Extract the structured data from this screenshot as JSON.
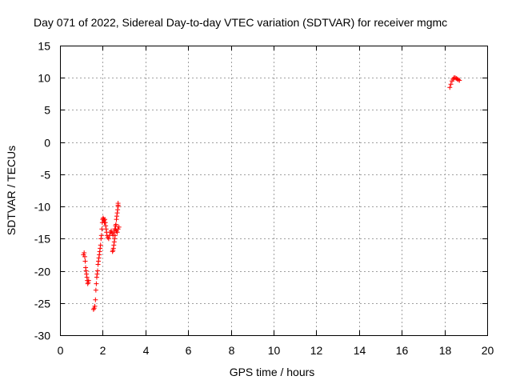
{
  "chart_data": {
    "type": "scatter",
    "title": "Day 071 of 2022, Sidereal Day-to-day VTEC variation (SDTVAR) for receiver mgmc",
    "xlabel": "GPS time / hours",
    "ylabel": "SDTVAR / TECUs",
    "xlim": [
      0,
      20
    ],
    "ylim": [
      -30,
      15
    ],
    "xticks": [
      0,
      2,
      4,
      6,
      8,
      10,
      12,
      14,
      16,
      18,
      20
    ],
    "yticks": [
      -30,
      -25,
      -20,
      -15,
      -10,
      -5,
      0,
      5,
      10,
      15
    ],
    "grid": true,
    "marker": "+",
    "series": [
      {
        "name": "SDTVAR",
        "color": "#ff0000",
        "x": [
          1.1,
          1.13,
          1.16,
          1.18,
          1.2,
          1.22,
          1.24,
          1.26,
          1.28,
          1.3,
          1.32,
          1.34,
          1.57,
          1.6,
          1.63,
          1.66,
          1.68,
          1.7,
          1.72,
          1.74,
          1.76,
          1.78,
          1.8,
          1.82,
          1.84,
          1.86,
          1.88,
          1.9,
          1.92,
          1.94,
          1.96,
          1.98,
          2.0,
          2.02,
          2.04,
          2.06,
          2.08,
          2.1,
          2.12,
          2.14,
          2.16,
          2.18,
          2.2,
          2.24,
          2.28,
          2.32,
          2.36,
          2.4,
          2.44,
          2.48,
          2.52,
          2.56,
          2.6,
          2.64,
          2.68,
          2.72,
          2.76,
          2.46,
          2.48,
          2.5,
          2.52,
          2.54,
          2.56,
          2.58,
          2.6,
          2.62,
          2.64,
          2.66,
          2.68,
          2.7,
          2.72,
          2.72,
          2.72,
          18.25,
          18.3,
          18.35,
          18.4,
          18.45,
          18.5,
          18.55,
          18.6,
          18.65,
          18.7
        ],
        "y": [
          -17.5,
          -17.2,
          -17.8,
          -18.5,
          -19.5,
          -20.0,
          -20.5,
          -21.0,
          -21.5,
          -22.0,
          -21.8,
          -21.5,
          -26.0,
          -25.8,
          -25.5,
          -24.5,
          -23.0,
          -22.0,
          -21.0,
          -20.5,
          -20.0,
          -19.0,
          -18.5,
          -18.0,
          -17.5,
          -17.0,
          -16.5,
          -16.0,
          -15.0,
          -14.5,
          -13.5,
          -12.5,
          -12.0,
          -11.8,
          -12.0,
          -12.2,
          -12.5,
          -12.0,
          -12.5,
          -13.0,
          -13.5,
          -14.0,
          -14.5,
          -14.8,
          -15.0,
          -14.5,
          -14.0,
          -13.8,
          -14.2,
          -14.5,
          -14.0,
          -13.5,
          -13.0,
          -13.8,
          -14.0,
          -13.5,
          -13.2,
          -17.0,
          -16.8,
          -16.5,
          -16.0,
          -15.5,
          -15.0,
          -14.5,
          -13.5,
          -12.8,
          -12.0,
          -11.5,
          -11.0,
          -10.5,
          -10.0,
          -9.8,
          -9.5,
          8.5,
          9.0,
          9.5,
          9.8,
          10.0,
          10.0,
          9.9,
          9.8,
          9.7,
          9.6
        ]
      }
    ]
  }
}
